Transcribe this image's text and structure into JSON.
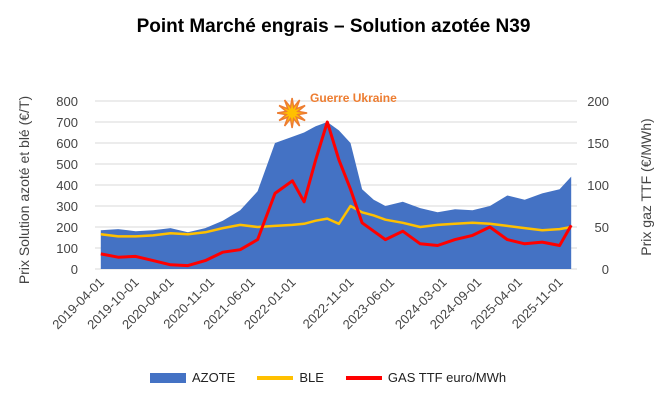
{
  "chart_data": {
    "type": "area",
    "title": "Point Marché engrais – Solution azotée N39",
    "ylabel_left": "Prix Solution azoté et blé (€/T)",
    "ylabel_right": "Prix gaz TTF (€/MWh)",
    "ylim_left": [
      0,
      800
    ],
    "ylim_right": [
      0,
      200
    ],
    "yticks_left": [
      "0",
      "100",
      "200",
      "300",
      "400",
      "500",
      "600",
      "700",
      "800"
    ],
    "yticks_right": [
      "0",
      "50",
      "100",
      "150",
      "200"
    ],
    "xticks": [
      "2019-04-01",
      "2019-10-01",
      "2020-04-01",
      "2020-11-01",
      "2021-06-01",
      "2022-01-01",
      "2022-11-01",
      "2023-06-01",
      "2024-03-01",
      "2024-09-01",
      "2025-04-01",
      "2025-11-01"
    ],
    "annotation": {
      "text": "Guerre Ukraine",
      "x": "2022-03-01"
    },
    "x": [
      "2019-04",
      "2019-07",
      "2019-10",
      "2020-01",
      "2020-04",
      "2020-07",
      "2020-10",
      "2021-01",
      "2021-04",
      "2021-07",
      "2021-10",
      "2022-01",
      "2022-03",
      "2022-05",
      "2022-07",
      "2022-09",
      "2022-11",
      "2023-01",
      "2023-03",
      "2023-05",
      "2023-08",
      "2023-11",
      "2024-02",
      "2024-05",
      "2024-08",
      "2024-11",
      "2025-02",
      "2025-05",
      "2025-08",
      "2025-11",
      "2026-01"
    ],
    "series": [
      {
        "name": "AZOTE",
        "axis": "left",
        "kind": "area",
        "color": "#4472C4",
        "values": [
          185,
          190,
          180,
          185,
          195,
          175,
          195,
          230,
          280,
          370,
          600,
          630,
          650,
          680,
          700,
          660,
          600,
          380,
          330,
          300,
          320,
          290,
          270,
          285,
          280,
          300,
          350,
          330,
          360,
          380,
          440
        ]
      },
      {
        "name": "BLE",
        "axis": "left",
        "kind": "line",
        "color": "#FFC000",
        "values": [
          165,
          155,
          155,
          160,
          170,
          165,
          175,
          195,
          210,
          200,
          205,
          210,
          215,
          230,
          240,
          215,
          300,
          270,
          255,
          235,
          220,
          200,
          210,
          215,
          220,
          215,
          205,
          195,
          185,
          190,
          200
        ]
      },
      {
        "name": "GAS TTF euro/MWh",
        "axis": "right",
        "kind": "line",
        "color": "#FF0000",
        "values": [
          18,
          14,
          15,
          10,
          5,
          4,
          10,
          20,
          23,
          35,
          90,
          105,
          80,
          130,
          175,
          130,
          95,
          55,
          45,
          35,
          45,
          30,
          28,
          35,
          40,
          50,
          35,
          30,
          32,
          28,
          52
        ]
      }
    ],
    "legend_position": "bottom",
    "grid": true
  }
}
